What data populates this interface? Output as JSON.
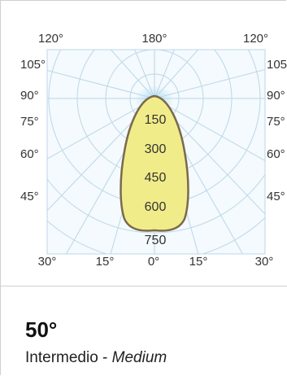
{
  "diagram": {
    "top_angles": [
      "120°",
      "180°",
      "120°"
    ],
    "bottom_angles": [
      "30°",
      "15°",
      "0°",
      "15°",
      "30°"
    ],
    "left_angles": [
      "105°",
      "90°",
      "75°",
      "60°",
      "45°"
    ],
    "right_angles": [
      "105°",
      "90°",
      "75°",
      "60°",
      "45°"
    ],
    "intensity_labels": [
      "150",
      "300",
      "450",
      "600",
      "750"
    ],
    "colors": {
      "plot_bg": "#f4fafd",
      "grid": "#bcd7e8",
      "lobe_fill": "#f1ec8a",
      "lobe_stroke": "#7a6a4c",
      "glow": "#a9d8f2"
    }
  },
  "info": {
    "beam_angle": "50°",
    "label_it": "Intermedio - ",
    "label_en": "Medium"
  }
}
